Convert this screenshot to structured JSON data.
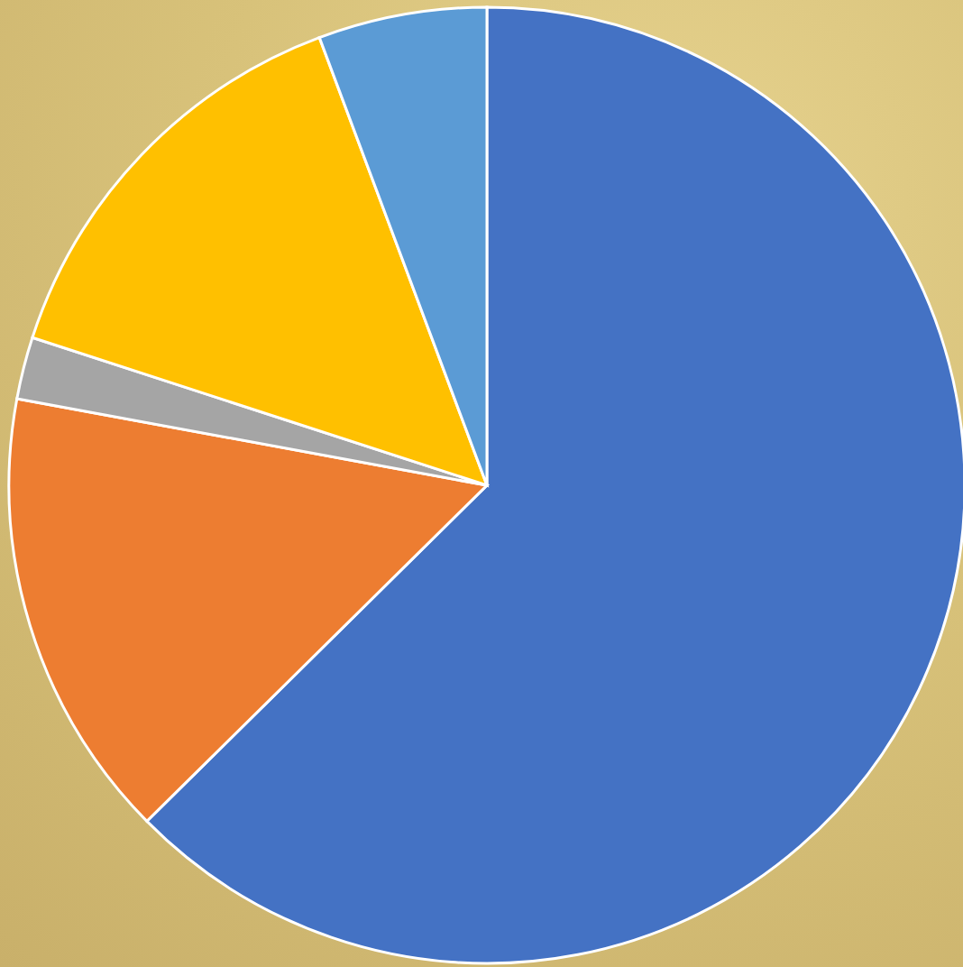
{
  "chart_data": {
    "type": "pie",
    "categories": [
      null,
      null,
      null,
      null,
      null
    ],
    "values": [
      62.6,
      15.3,
      2.1,
      14.3,
      5.7
    ],
    "colors": [
      "#4472c4",
      "#ed7d31",
      "#a5a5a5",
      "#ffc000",
      "#5b9bd5"
    ]
  }
}
